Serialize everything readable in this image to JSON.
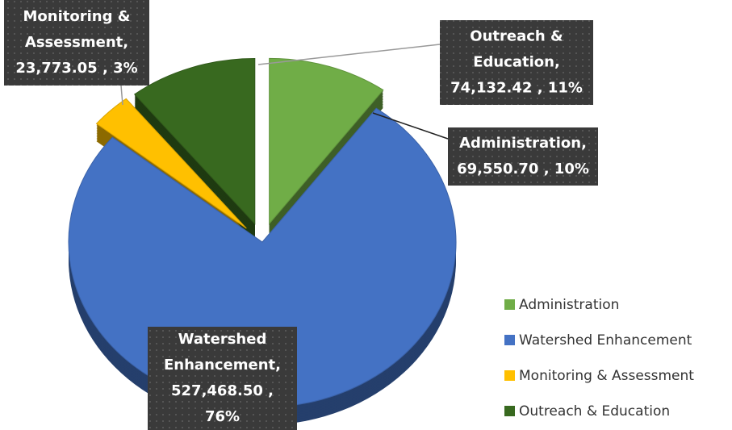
{
  "chart_data": {
    "type": "pie",
    "categories": [
      "Administration",
      "Watershed Enhancement",
      "Monitoring & Assessment",
      "Outreach & Education"
    ],
    "values": [
      69550.7,
      527468.5,
      23773.05,
      74132.42
    ],
    "colors": [
      "#70ad47",
      "#4472c4",
      "#ffc000",
      "#38691f"
    ],
    "data_labels": [
      [
        "Administration,",
        "69,550.70 , 10%"
      ],
      [
        "Watershed",
        "Enhancement,",
        "527,468.50 ,",
        "76%"
      ],
      [
        "Monitoring &",
        "Assessment,",
        "23,773.05 , 3%"
      ],
      [
        "Outreach &",
        "Education,",
        "74,132.42 , 11%"
      ]
    ],
    "legend": "right"
  }
}
